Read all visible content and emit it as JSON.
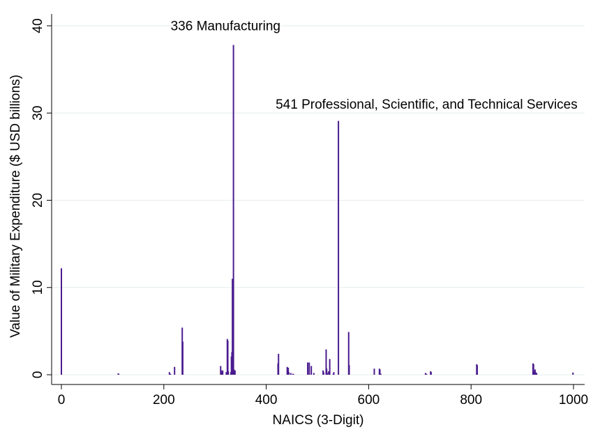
{
  "chart_data": {
    "type": "bar",
    "title": "",
    "xlabel": "NAICS (3-Digit)",
    "ylabel": "Value of Military Expenditure ($ USD billions)",
    "xlim": [
      0,
      1000
    ],
    "ylim": [
      0,
      40
    ],
    "x_ticks": [
      "0",
      "200",
      "400",
      "600",
      "800",
      "1000"
    ],
    "y_ticks": [
      "0",
      "10",
      "20",
      "30",
      "40"
    ],
    "grid": true,
    "color": "#4b1c8f",
    "annotations": [
      {
        "text": "336 Manufacturing",
        "x": 336,
        "y": 39.8
      },
      {
        "text": "541 Professional, Scientific, and Technical Services",
        "x": 541,
        "y": 30.8
      }
    ],
    "x": [
      0,
      111,
      112,
      211,
      213,
      221,
      236,
      237,
      311,
      312,
      313,
      314,
      315,
      322,
      323,
      324,
      325,
      326,
      331,
      332,
      333,
      334,
      335,
      336,
      337,
      339,
      423,
      424,
      441,
      443,
      444,
      448,
      452,
      453,
      481,
      484,
      488,
      493,
      511,
      512,
      517,
      518,
      519,
      522,
      524,
      531,
      532,
      541,
      561,
      562,
      611,
      621,
      622,
      624,
      711,
      713,
      721,
      722,
      811,
      812,
      921,
      922,
      923,
      925,
      926,
      928,
      999
    ],
    "values": [
      12.2,
      0.15,
      0.1,
      0.3,
      0.1,
      0.9,
      5.4,
      3.8,
      1.0,
      0.5,
      0.3,
      0.1,
      0.5,
      0.3,
      0.2,
      4.1,
      3.9,
      0.4,
      0.3,
      2.1,
      2.6,
      11.0,
      1.5,
      37.8,
      0.6,
      0.5,
      1.3,
      2.4,
      0.9,
      0.8,
      0.3,
      0.2,
      0.1,
      0.1,
      1.4,
      1.4,
      1.0,
      0.2,
      0.5,
      0.3,
      2.9,
      0.7,
      0.2,
      0.4,
      1.8,
      0.1,
      0.3,
      29.1,
      4.9,
      1.1,
      0.7,
      0.7,
      0.6,
      0.1,
      0.2,
      0.1,
      0.4,
      0.3,
      1.2,
      1.1,
      1.3,
      1.2,
      0.4,
      0.6,
      0.3,
      0.2,
      0.25
    ]
  }
}
